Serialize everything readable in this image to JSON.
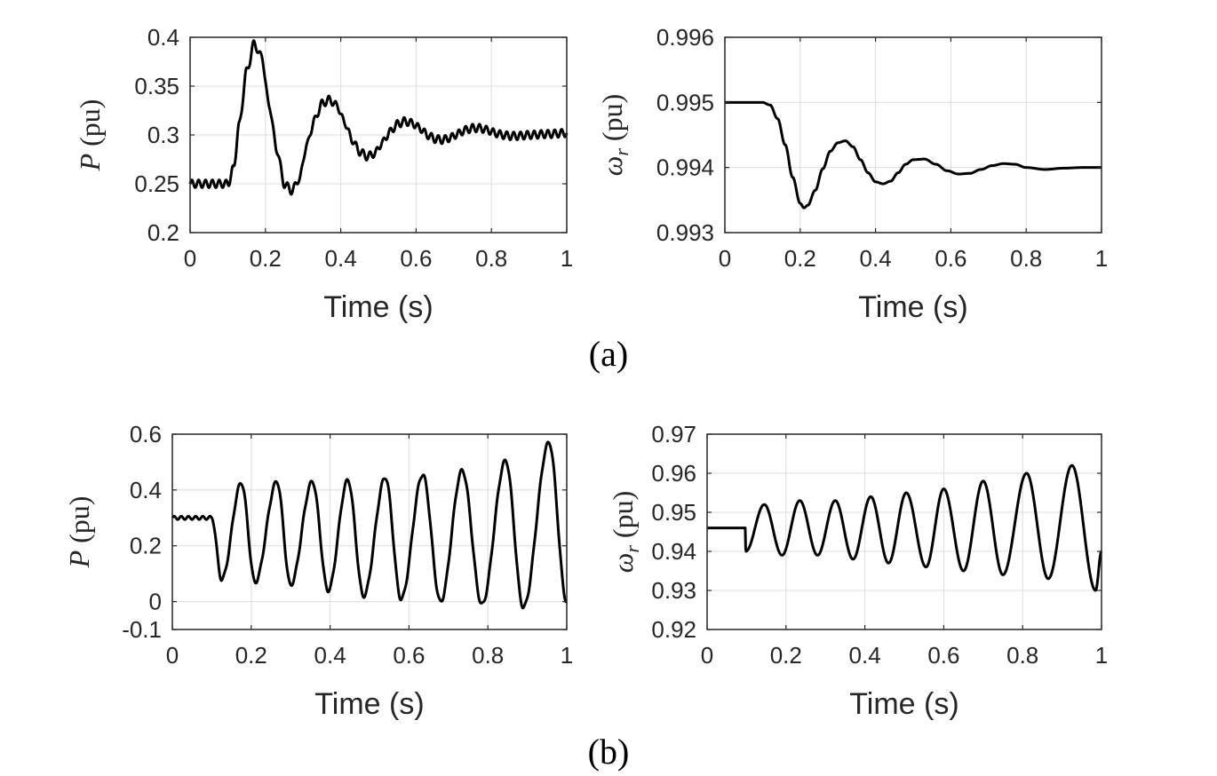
{
  "captions": {
    "a": "(a)",
    "b": "(b)"
  },
  "chart_data": [
    {
      "id": "a-left",
      "type": "line",
      "xlabel": "Time (s)",
      "ylabel_symbol": "P",
      "ylabel_sub": "",
      "ylabel_unit": "(pu)",
      "xlim": [
        0,
        1
      ],
      "ylim": [
        0.2,
        0.4
      ],
      "xticks": [
        0,
        0.2,
        0.4,
        0.6,
        0.8,
        1
      ],
      "xticklabels": [
        "0",
        "0.2",
        "0.4",
        "0.6",
        "0.8",
        "1"
      ],
      "yticks": [
        0.2,
        0.25,
        0.3,
        0.35,
        0.4
      ],
      "yticklabels": [
        "0.2",
        "0.25",
        "0.3",
        "0.35",
        "0.4"
      ],
      "grid": true,
      "series": [
        {
          "color": "#000000",
          "x": [
            0,
            0.1,
            0.115,
            0.13,
            0.15,
            0.17,
            0.19,
            0.21,
            0.23,
            0.25,
            0.27,
            0.29,
            0.31,
            0.33,
            0.35,
            0.37,
            0.39,
            0.41,
            0.43,
            0.45,
            0.47,
            0.49,
            0.51,
            0.53,
            0.55,
            0.57,
            0.59,
            0.61,
            0.63,
            0.65,
            0.67,
            0.69,
            0.71,
            0.73,
            0.75,
            0.77,
            0.79,
            0.81,
            0.83,
            0.85,
            0.87,
            0.9,
            0.95,
            1.0
          ],
          "y": [
            0.25,
            0.25,
            0.265,
            0.31,
            0.365,
            0.393,
            0.38,
            0.33,
            0.285,
            0.25,
            0.243,
            0.255,
            0.29,
            0.315,
            0.332,
            0.336,
            0.33,
            0.313,
            0.295,
            0.283,
            0.278,
            0.281,
            0.292,
            0.303,
            0.311,
            0.314,
            0.312,
            0.307,
            0.3,
            0.296,
            0.295,
            0.297,
            0.301,
            0.305,
            0.307,
            0.307,
            0.305,
            0.302,
            0.3,
            0.299,
            0.299,
            0.3,
            0.301,
            0.302
          ],
          "ripple": 0.004
        }
      ]
    },
    {
      "id": "a-right",
      "type": "line",
      "xlabel": "Time (s)",
      "ylabel_symbol": "ω",
      "ylabel_sub": "r",
      "ylabel_unit": "(pu)",
      "xlim": [
        0,
        1
      ],
      "ylim": [
        0.993,
        0.996
      ],
      "xticks": [
        0,
        0.2,
        0.4,
        0.6,
        0.8,
        1
      ],
      "xticklabels": [
        "0",
        "0.2",
        "0.4",
        "0.6",
        "0.8",
        "1"
      ],
      "yticks": [
        0.993,
        0.994,
        0.995,
        0.996
      ],
      "yticklabels": [
        "0.993",
        "0.994",
        "0.995",
        "0.996"
      ],
      "grid": true,
      "series": [
        {
          "color": "#000000",
          "x": [
            0,
            0.1,
            0.12,
            0.14,
            0.16,
            0.18,
            0.2,
            0.21,
            0.22,
            0.24,
            0.26,
            0.28,
            0.3,
            0.32,
            0.34,
            0.36,
            0.38,
            0.4,
            0.42,
            0.44,
            0.46,
            0.48,
            0.5,
            0.53,
            0.56,
            0.59,
            0.62,
            0.65,
            0.68,
            0.71,
            0.74,
            0.77,
            0.8,
            0.85,
            0.9,
            0.95,
            1.0
          ],
          "y": [
            0.995,
            0.995,
            0.99496,
            0.99475,
            0.99435,
            0.99385,
            0.99345,
            0.99338,
            0.99342,
            0.99365,
            0.99398,
            0.99425,
            0.99438,
            0.99441,
            0.99432,
            0.99412,
            0.99392,
            0.99378,
            0.99375,
            0.99379,
            0.99392,
            0.99405,
            0.99412,
            0.99413,
            0.99405,
            0.99395,
            0.9939,
            0.99391,
            0.99397,
            0.99403,
            0.99406,
            0.99405,
            0.994,
            0.99397,
            0.99399,
            0.994,
            0.994
          ],
          "ripple": 0
        }
      ]
    },
    {
      "id": "b-left",
      "type": "line",
      "xlabel": "Time (s)",
      "ylabel_symbol": "P",
      "ylabel_sub": "",
      "ylabel_unit": "(pu)",
      "xlim": [
        0,
        1
      ],
      "ylim": [
        -0.1,
        0.6
      ],
      "xticks": [
        0,
        0.2,
        0.4,
        0.6,
        0.8,
        1
      ],
      "xticklabels": [
        "0",
        "0.2",
        "0.4",
        "0.6",
        "0.8",
        "1"
      ],
      "yticks": [
        -0.1,
        0,
        0.2,
        0.4,
        0.6
      ],
      "yticklabels": [
        "-0.1",
        "0",
        "0.2",
        "0.4",
        "0.6"
      ],
      "grid": true,
      "series": [
        {
          "color": "#000000",
          "x": [
            0,
            0.1,
            0.125,
            0.175,
            0.21,
            0.265,
            0.3,
            0.355,
            0.395,
            0.445,
            0.485,
            0.54,
            0.58,
            0.635,
            0.68,
            0.735,
            0.785,
            0.845,
            0.89,
            0.955,
            1.0
          ],
          "y": [
            0.3,
            0.3,
            0.08,
            0.425,
            0.07,
            0.43,
            0.06,
            0.43,
            0.04,
            0.435,
            0.02,
            0.445,
            0.01,
            0.455,
            0.0,
            0.47,
            -0.01,
            0.505,
            -0.02,
            0.57,
            0.0
          ],
          "ripple": 0.006
        }
      ]
    },
    {
      "id": "b-right",
      "type": "line",
      "xlabel": "Time (s)",
      "ylabel_symbol": "ω",
      "ylabel_sub": "r",
      "ylabel_unit": "(pu)",
      "xlim": [
        0,
        1
      ],
      "ylim": [
        0.92,
        0.97
      ],
      "xticks": [
        0,
        0.2,
        0.4,
        0.6,
        0.8,
        1
      ],
      "xticklabels": [
        "0",
        "0.2",
        "0.4",
        "0.6",
        "0.8",
        "1"
      ],
      "yticks": [
        0.92,
        0.93,
        0.94,
        0.95,
        0.96,
        0.97
      ],
      "yticklabels": [
        "0.92",
        "0.93",
        "0.94",
        "0.95",
        "0.96",
        "0.97"
      ],
      "grid": true,
      "series": [
        {
          "color": "#000000",
          "x": [
            0,
            0.097,
            0.098,
            0.145,
            0.19,
            0.235,
            0.28,
            0.325,
            0.37,
            0.415,
            0.46,
            0.505,
            0.555,
            0.6,
            0.65,
            0.7,
            0.75,
            0.81,
            0.865,
            0.925,
            0.985,
            1.0
          ],
          "y": [
            0.946,
            0.946,
            0.94,
            0.952,
            0.939,
            0.953,
            0.939,
            0.953,
            0.938,
            0.954,
            0.937,
            0.955,
            0.936,
            0.956,
            0.935,
            0.958,
            0.934,
            0.96,
            0.933,
            0.962,
            0.93,
            0.94
          ],
          "ripple": 0
        }
      ]
    }
  ]
}
